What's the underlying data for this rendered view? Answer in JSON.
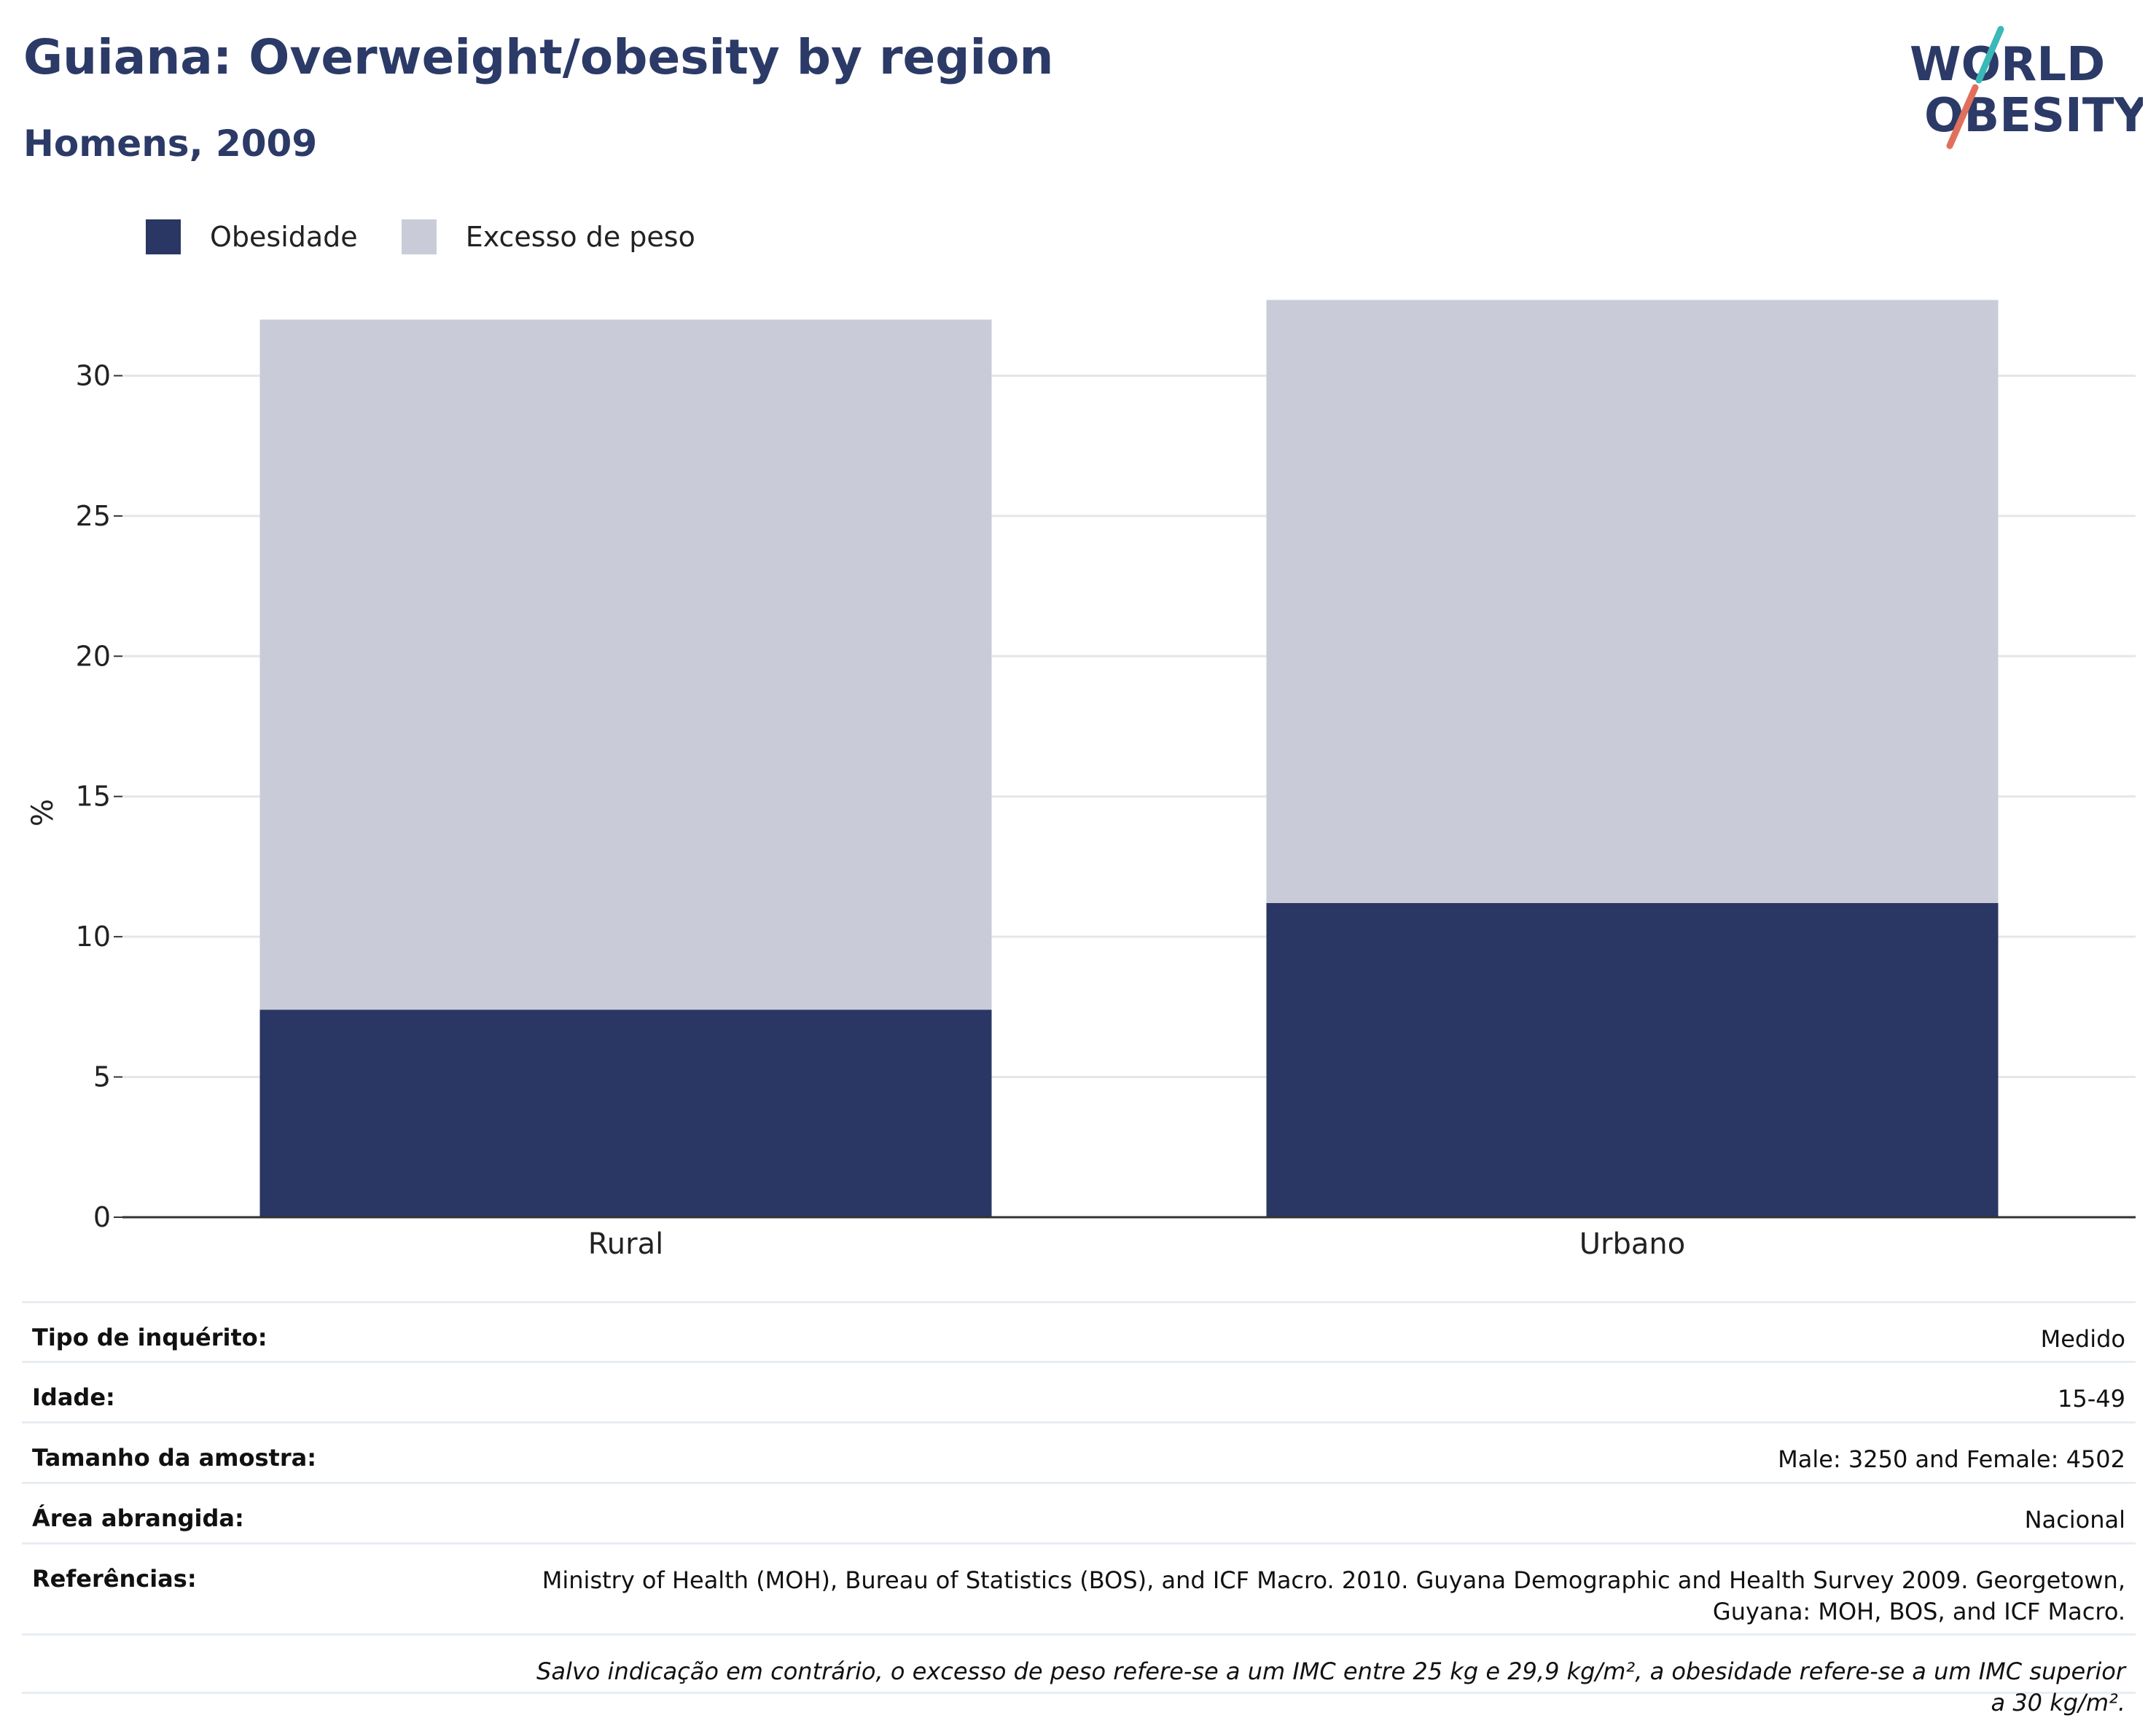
{
  "title": "Guiana: Overweight/obesity by region",
  "subtitle": "Homens, 2009",
  "logo": {
    "line1": "WORLD",
    "line2": "OBESITY"
  },
  "colors": {
    "obesity": "#2a3663",
    "overweight": "#c9ccd8",
    "title": "#2b3a67",
    "grid": "#e6e6ea",
    "axis": "#333333",
    "logo_accent1": "#3bb8b8",
    "logo_accent2": "#e0705c"
  },
  "legend": [
    {
      "label": "Obesidade",
      "color": "#2a3663"
    },
    {
      "label": "Excesso de peso",
      "color": "#c9ccd8"
    }
  ],
  "chart_data": {
    "type": "bar",
    "stacked": true,
    "categories": [
      "Rural",
      "Urbano"
    ],
    "series": [
      {
        "name": "Obesidade",
        "values": [
          7.4,
          11.2
        ]
      },
      {
        "name": "Excesso de peso",
        "values": [
          24.6,
          21.5
        ]
      }
    ],
    "ylabel": "%",
    "ylim": [
      0,
      33
    ],
    "yticks": [
      0,
      5,
      10,
      15,
      20,
      25,
      30
    ],
    "grid": true,
    "legend_position": "top-left"
  },
  "meta": [
    {
      "key": "Tipo de inquérito:",
      "value": "Medido"
    },
    {
      "key": "Idade:",
      "value": "15-49"
    },
    {
      "key": "Tamanho da amostra:",
      "value": "Male: 3250 and Female: 4502"
    },
    {
      "key": "Área abrangida:",
      "value": "Nacional"
    },
    {
      "key": "Referências:",
      "value": "Ministry of Health (MOH), Bureau of Statistics (BOS), and ICF Macro. 2010. Guyana Demographic and Health Survey 2009. Georgetown, Guyana: MOH, BOS, and ICF Macro."
    }
  ],
  "note": "Salvo indicação em contrário, o excesso de peso refere-se a um IMC entre 25 kg e 29,9 kg/m², a obesidade refere-se a um IMC superior a 30 kg/m²."
}
